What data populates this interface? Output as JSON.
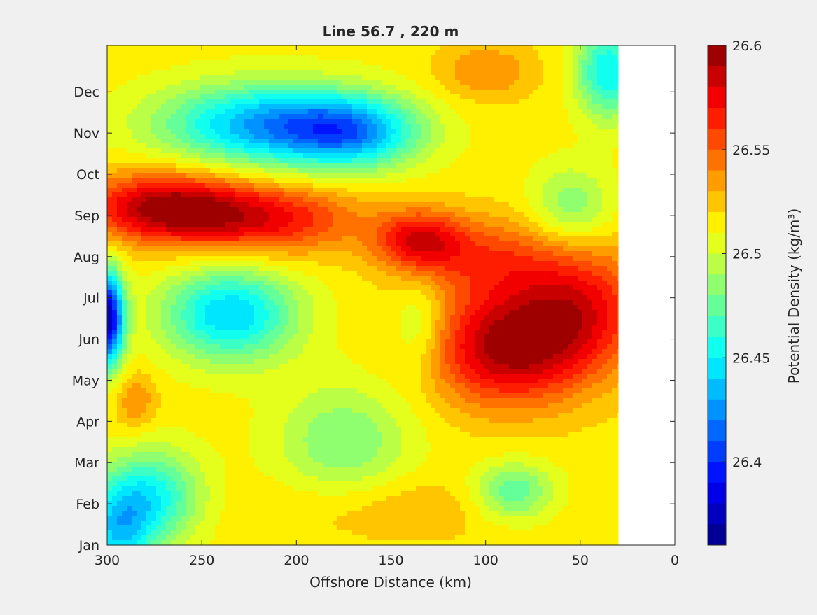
{
  "chart_data": {
    "type": "heatmap",
    "title": "Line 56.7 , 220 m",
    "xlabel": "Offshore Distance (km)",
    "ylabel": "",
    "xlim": [
      300,
      0
    ],
    "x_direction": "reversed",
    "x_ticks": [
      300,
      250,
      200,
      150,
      100,
      50,
      0
    ],
    "y_categories": [
      "Jan",
      "Feb",
      "Mar",
      "Apr",
      "May",
      "Jun",
      "Jul",
      "Aug",
      "Sep",
      "Oct",
      "Nov",
      "Dec"
    ],
    "data_x_extent_km": [
      300,
      30
    ],
    "colorbar": {
      "label": "Potential Density (kg/m³)",
      "range": [
        26.36,
        26.6
      ],
      "ticks": [
        26.4,
        26.45,
        26.5,
        26.55,
        26.6
      ],
      "levels": 24,
      "colormap": "jet"
    },
    "features": [
      {
        "x": 300,
        "y": 5.5,
        "value": 26.37,
        "spread_x": 6,
        "spread_y": 0.8
      },
      {
        "x": 295,
        "y": 0.3,
        "value": 26.45,
        "spread_x": 14,
        "spread_y": 0.9
      },
      {
        "x": 275,
        "y": 1.2,
        "value": 26.46,
        "spread_x": 18,
        "spread_y": 0.8
      },
      {
        "x": 235,
        "y": 5.6,
        "value": 26.44,
        "spread_x": 25,
        "spread_y": 0.8
      },
      {
        "x": 215,
        "y": 10.2,
        "value": 26.43,
        "spread_x": 40,
        "spread_y": 0.7
      },
      {
        "x": 170,
        "y": 10.0,
        "value": 26.45,
        "spread_x": 25,
        "spread_y": 0.6
      },
      {
        "x": 35,
        "y": 11.5,
        "value": 26.45,
        "spread_x": 12,
        "spread_y": 0.8
      },
      {
        "x": 270,
        "y": 8.2,
        "value": 26.59,
        "spread_x": 30,
        "spread_y": 0.6
      },
      {
        "x": 215,
        "y": 7.9,
        "value": 26.57,
        "spread_x": 35,
        "spread_y": 0.6
      },
      {
        "x": 135,
        "y": 7.4,
        "value": 26.57,
        "spread_x": 16,
        "spread_y": 0.5
      },
      {
        "x": 90,
        "y": 4.8,
        "value": 26.59,
        "spread_x": 28,
        "spread_y": 1.0
      },
      {
        "x": 50,
        "y": 5.7,
        "value": 26.57,
        "spread_x": 25,
        "spread_y": 1.1
      },
      {
        "x": 100,
        "y": 7.0,
        "value": 26.55,
        "spread_x": 30,
        "spread_y": 0.7
      },
      {
        "x": 150,
        "y": 0.9,
        "value": 26.53,
        "spread_x": 45,
        "spread_y": 0.6
      },
      {
        "x": 100,
        "y": 11.5,
        "value": 26.54,
        "spread_x": 18,
        "spread_y": 0.5
      },
      {
        "x": 285,
        "y": 3.5,
        "value": 26.54,
        "spread_x": 8,
        "spread_y": 0.5
      },
      {
        "x": 85,
        "y": 1.3,
        "value": 26.47,
        "spread_x": 15,
        "spread_y": 0.5
      },
      {
        "x": 135,
        "y": 5.3,
        "value": 26.49,
        "spread_x": 10,
        "spread_y": 0.8
      },
      {
        "x": 55,
        "y": 8.2,
        "value": 26.48,
        "spread_x": 15,
        "spread_y": 0.7
      },
      {
        "x": 175,
        "y": 2.5,
        "value": 26.48,
        "spread_x": 25,
        "spread_y": 1.0
      }
    ],
    "base_value": 26.515
  }
}
